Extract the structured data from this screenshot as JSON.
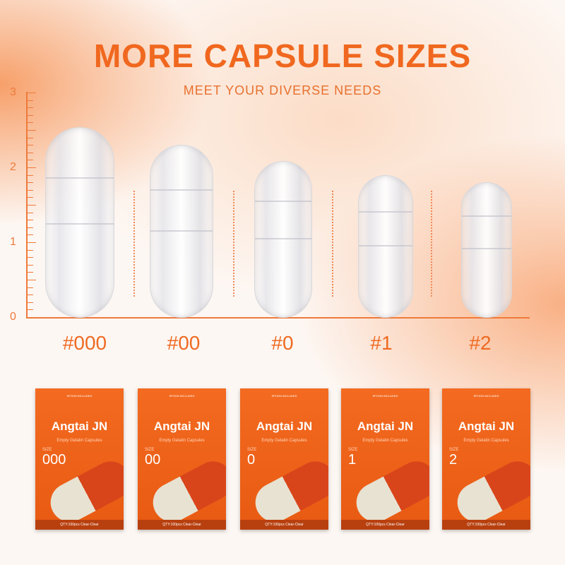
{
  "title": "MORE CAPSULE SIZES",
  "subtitle": "MEET YOUR DIVERSE NEEDS",
  "axis_ticks": [
    "0",
    "1",
    "2",
    "3"
  ],
  "sizes": [
    "#000",
    "#00",
    "#0",
    "#1",
    "#2"
  ],
  "package": {
    "brand": "Angtai JN",
    "product": "Empty Gelatin Capsules",
    "spoon": "SPOON INCLUDED",
    "size_word": "SIZE",
    "qty": "QTY:100pcs Clear-Clear",
    "sizes": [
      "000",
      "00",
      "0",
      "1",
      "2"
    ]
  },
  "colors": {
    "accent": "#f0681f"
  }
}
